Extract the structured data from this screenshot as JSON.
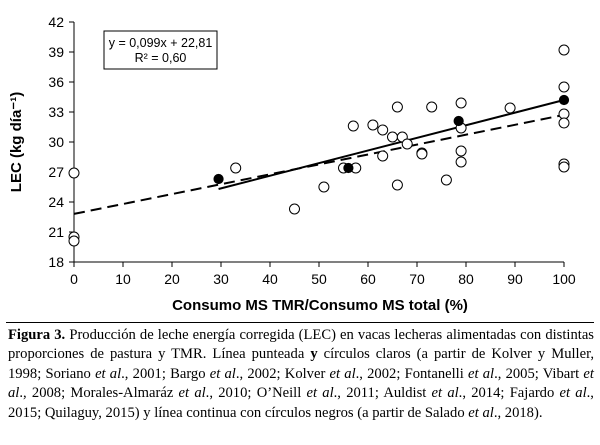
{
  "chart_data": {
    "type": "scatter",
    "xlabel": "Consumo MS TMR/Consumo MS total (%)",
    "ylabel": "LEC (kg día⁻¹)",
    "xlim": [
      0,
      100
    ],
    "ylim": [
      18,
      42
    ],
    "x_ticks": [
      0,
      10,
      20,
      30,
      40,
      50,
      60,
      70,
      80,
      90,
      100
    ],
    "y_ticks": [
      18,
      21,
      24,
      27,
      30,
      33,
      36,
      39,
      42
    ],
    "series": [
      {
        "name": "Círculos claros",
        "marker": "open-circle",
        "points": [
          [
            0,
            26.9
          ],
          [
            0,
            20.5
          ],
          [
            0,
            20.1
          ],
          [
            33,
            27.4
          ],
          [
            45,
            23.3
          ],
          [
            51,
            25.5
          ],
          [
            55,
            27.4
          ],
          [
            57,
            31.6
          ],
          [
            57.5,
            27.4
          ],
          [
            61,
            31.7
          ],
          [
            63,
            31.2
          ],
          [
            63,
            28.6
          ],
          [
            65,
            30.5
          ],
          [
            66,
            33.5
          ],
          [
            66,
            25.7
          ],
          [
            67,
            30.5
          ],
          [
            68,
            29.8
          ],
          [
            71,
            28.9
          ],
          [
            71,
            28.8
          ],
          [
            73,
            33.5
          ],
          [
            76,
            26.2
          ],
          [
            79,
            33.9
          ],
          [
            79,
            31.4
          ],
          [
            79,
            29.1
          ],
          [
            79,
            28.0
          ],
          [
            89,
            33.4
          ],
          [
            100,
            39.2
          ],
          [
            100,
            35.5
          ],
          [
            100,
            32.8
          ],
          [
            100,
            31.9
          ],
          [
            100,
            27.8
          ],
          [
            100,
            27.5
          ]
        ]
      },
      {
        "name": "Círculos negros",
        "marker": "filled-circle",
        "points": [
          [
            29.5,
            26.3
          ],
          [
            56,
            27.4
          ],
          [
            78.5,
            32.1
          ],
          [
            100,
            34.2
          ]
        ]
      }
    ],
    "lines": [
      {
        "name": "Línea continua",
        "style": "solid",
        "x": [
          29.5,
          100
        ],
        "y": [
          25.3,
          34.2
        ]
      },
      {
        "name": "Línea punteada",
        "style": "dashed",
        "slope": 0.099,
        "intercept": 22.81,
        "x": [
          0,
          100
        ]
      }
    ],
    "annotation": {
      "equation": "y = 0,099x + 22,81",
      "r2": "R² = 0,60"
    },
    "colors": {
      "axis": "#000000",
      "marker_fill_open": "#ffffff",
      "marker_fill_closed": "#000000",
      "line": "#000000"
    }
  },
  "caption": {
    "label": "Figura 3.",
    "lines": [
      "Producción de leche energía corregida (LEC) en vacas lecheras alimentadas con",
      "distintas proporciones de pastura y TMR. Línea punteada y círculos claros (a partir de",
      "Kolver y Muller, 1998; Soriano et al., 2001; Bargo et al., 2002; Kolver et al., 2002;",
      "Fontanelli et al., 2005; Vibart et al., 2008; Morales-Almaráz et al., 2010; O’Neill et al.,",
      "2011; Auldist et al., 2014; Fajardo et al., 2015; Quilaguy, 2015) y línea continua con",
      "círculos negros (a partir de Salado et al., 2018)."
    ]
  }
}
